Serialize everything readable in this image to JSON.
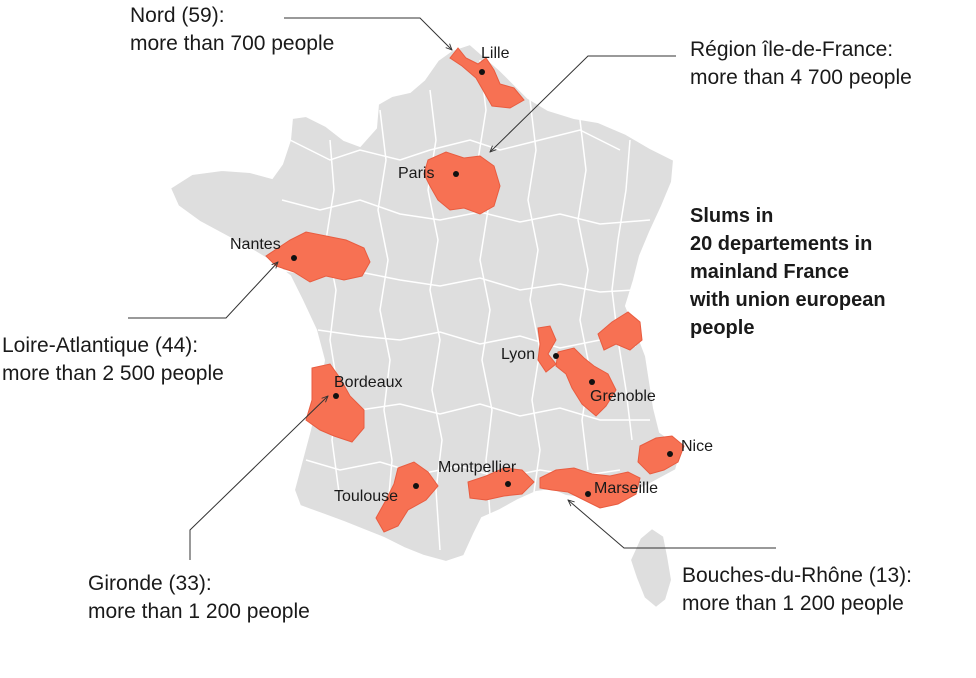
{
  "title": {
    "lines": [
      "Slums in",
      "20 departements in",
      "mainland France",
      "with union european",
      "people"
    ]
  },
  "colors": {
    "land": "#dedede",
    "borders": "#ffffff",
    "highlight": "#f77153",
    "highlight_border": "#e85c40",
    "text": "#1a1a1a",
    "leader": "#333333"
  },
  "callouts": {
    "nord": {
      "name": "Nord (59):",
      "detail": "more than 700 people"
    },
    "idf": {
      "name": "Région île-de-France:",
      "detail": "more than 4 700 people"
    },
    "loire": {
      "name": "Loire-Atlantique (44):",
      "detail": "more than 2 500 people"
    },
    "gironde": {
      "name": "Gironde (33):",
      "detail": "more than 1 200 people"
    },
    "bdr": {
      "name": "Bouches-du-Rhône (13):",
      "detail": "more than 1 200 people"
    }
  },
  "cities": {
    "lille": "Lille",
    "paris": "Paris",
    "nantes": "Nantes",
    "lyon": "Lyon",
    "grenoble": "Grenoble",
    "bordeaux": "Bordeaux",
    "montpellier": "Montpellier",
    "toulouse": "Toulouse",
    "marseille": "Marseille",
    "nice": "Nice"
  }
}
